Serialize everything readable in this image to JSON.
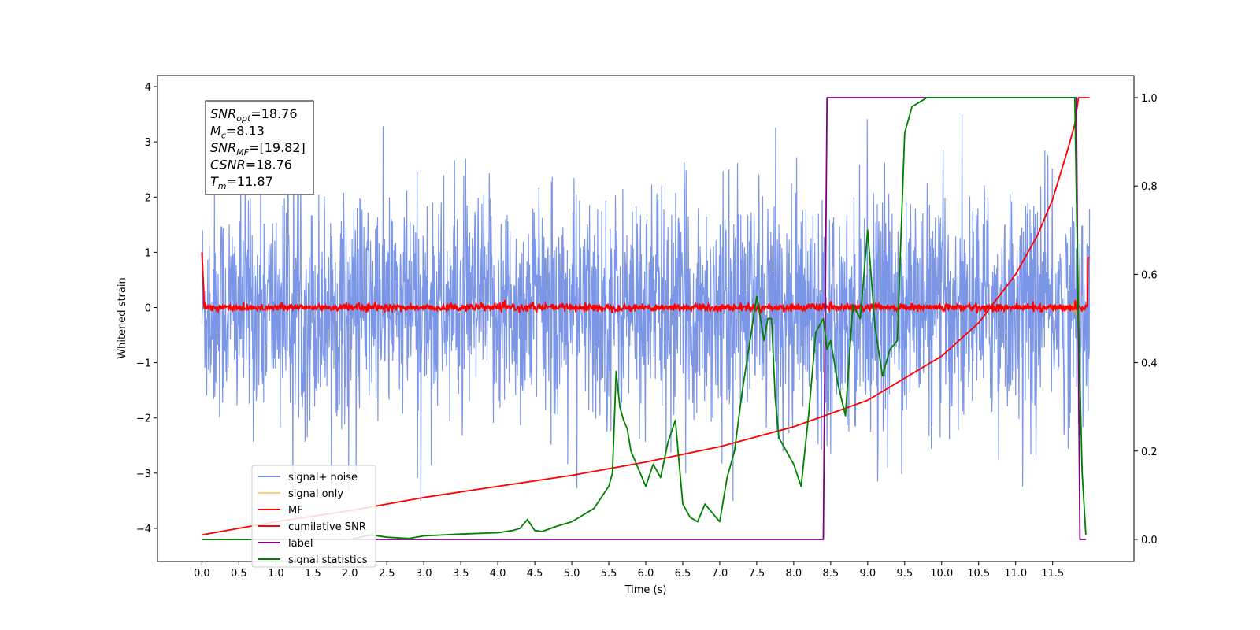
{
  "chart_data": {
    "type": "line",
    "xlabel": "Time (s)",
    "ylabel": "Whitened strain",
    "xlim": [
      -0.6,
      12.6
    ],
    "ylim": [
      -4.6,
      4.2
    ],
    "y2lim": [
      -0.05,
      1.05
    ],
    "x_ticks": [
      "0.0",
      "0.5",
      "1.0",
      "1.5",
      "2.0",
      "2.5",
      "3.0",
      "3.5",
      "4.0",
      "4.5",
      "5.0",
      "5.5",
      "6.0",
      "6.5",
      "7.0",
      "7.5",
      "8.0",
      "8.5",
      "9.0",
      "9.5",
      "10.0",
      "10.5",
      "11.0",
      "11.5"
    ],
    "y_ticks": [
      "4",
      "3",
      "2",
      "1",
      "0",
      "−1",
      "−2",
      "−3",
      "−4"
    ],
    "y2_ticks": [
      "1.0",
      "0.8",
      "0.6",
      "0.4",
      "0.2",
      "0.0"
    ],
    "legend_position": "lower-left",
    "series": [
      {
        "name": "signal+ noise",
        "color": "#7b96e6",
        "axis": "left",
        "description_kind": "noise",
        "x_range": [
          0.0,
          12.0
        ]
      },
      {
        "name": "signal only",
        "color": "#ffcc80",
        "axis": "left",
        "x_range": [
          0.0,
          11.87
        ]
      },
      {
        "name": "MF",
        "color": "#ff0000",
        "axis": "left",
        "x_range": [
          0.0,
          12.0
        ]
      },
      {
        "name": "cumilative SNR",
        "color": "#ff0000",
        "axis": "right",
        "x": [
          0.0,
          1.0,
          2.0,
          3.0,
          4.0,
          5.0,
          6.0,
          7.0,
          8.0,
          9.0,
          10.0,
          10.5,
          11.0,
          11.3,
          11.5,
          11.7,
          11.8,
          11.85,
          11.87,
          12.0
        ],
        "values": [
          0.01,
          0.04,
          0.065,
          0.095,
          0.12,
          0.145,
          0.175,
          0.21,
          0.255,
          0.315,
          0.415,
          0.49,
          0.6,
          0.69,
          0.77,
          0.88,
          0.94,
          1.0,
          1.0,
          1.0
        ]
      },
      {
        "name": "label",
        "color": "#800080",
        "axis": "right",
        "x": [
          0.0,
          8.4,
          8.45,
          11.82,
          11.87,
          11.95
        ],
        "values": [
          0.0,
          0.0,
          1.0,
          1.0,
          0.0,
          0.0
        ]
      },
      {
        "name": "signal statistics",
        "color": "#008000",
        "axis": "right",
        "x": [
          0.0,
          2.0,
          2.3,
          2.5,
          2.8,
          3.0,
          3.5,
          4.0,
          4.2,
          4.3,
          4.4,
          4.5,
          4.6,
          4.8,
          5.0,
          5.3,
          5.5,
          5.55,
          5.6,
          5.65,
          5.7,
          5.75,
          5.8,
          5.9,
          6.0,
          6.1,
          6.2,
          6.3,
          6.4,
          6.5,
          6.6,
          6.7,
          6.8,
          6.9,
          7.0,
          7.1,
          7.2,
          7.3,
          7.5,
          7.6,
          7.65,
          7.7,
          7.75,
          7.8,
          7.9,
          8.0,
          8.1,
          8.2,
          8.3,
          8.4,
          8.45,
          8.5,
          8.6,
          8.7,
          8.8,
          8.9,
          9.0,
          9.1,
          9.2,
          9.3,
          9.4,
          9.5,
          9.6,
          9.7,
          9.8,
          10.0,
          10.5,
          11.0,
          11.5,
          11.8,
          11.85,
          11.9,
          11.95
        ],
        "values": [
          0.0,
          0.0,
          0.01,
          0.005,
          0.002,
          0.008,
          0.012,
          0.015,
          0.02,
          0.025,
          0.045,
          0.02,
          0.018,
          0.03,
          0.04,
          0.07,
          0.12,
          0.15,
          0.38,
          0.3,
          0.27,
          0.25,
          0.2,
          0.16,
          0.12,
          0.17,
          0.14,
          0.22,
          0.27,
          0.08,
          0.05,
          0.04,
          0.08,
          0.06,
          0.04,
          0.14,
          0.2,
          0.33,
          0.55,
          0.45,
          0.5,
          0.5,
          0.32,
          0.23,
          0.2,
          0.17,
          0.12,
          0.28,
          0.47,
          0.5,
          0.43,
          0.45,
          0.35,
          0.28,
          0.53,
          0.5,
          0.7,
          0.48,
          0.37,
          0.43,
          0.45,
          0.92,
          0.98,
          0.99,
          1.0,
          1.0,
          1.0,
          1.0,
          1.0,
          1.0,
          0.5,
          0.15,
          0.01
        ]
      }
    ]
  },
  "annotation": {
    "lines": [
      {
        "main": "SNR",
        "sub": "opt",
        "rest": "=18.76"
      },
      {
        "main": "M",
        "sub": "c",
        "rest": "=8.13"
      },
      {
        "main": "SNR",
        "sub": "MF",
        "rest": "=[19.82]"
      },
      {
        "main": "CSNR",
        "sub": "",
        "rest": "=18.76"
      },
      {
        "main": "T",
        "sub": "m",
        "rest": "=11.87"
      }
    ]
  }
}
